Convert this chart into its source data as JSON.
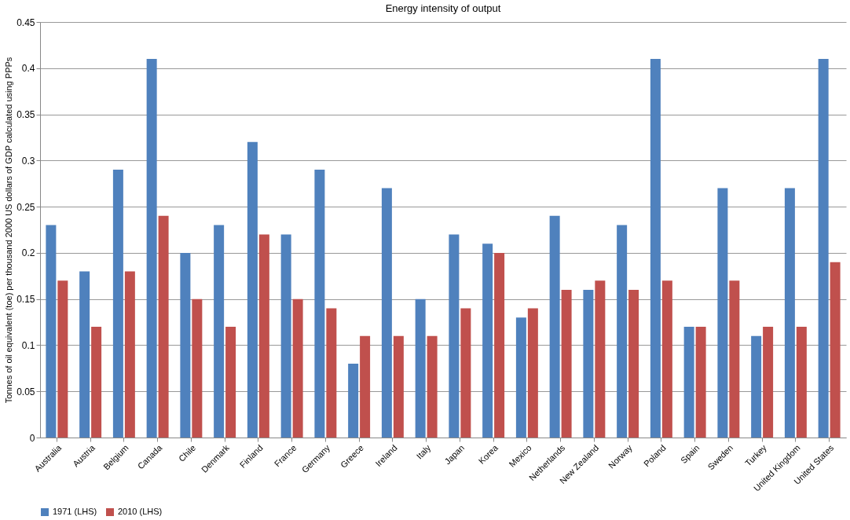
{
  "chart_data": {
    "type": "bar",
    "title": "Energy intensity of output",
    "ylabel": "Tonnes of oil equivalent (toe) per thousand 2000 US dollars of GDP calculated using PPPs",
    "categories": [
      "Australia",
      "Austria",
      "Belgium",
      "Canada",
      "Chile",
      "Denmark",
      "Finland",
      "France",
      "Germany",
      "Greece",
      "Ireland",
      "Italy",
      "Japan",
      "Korea",
      "Mexico",
      "Netherlands",
      "New Zealand",
      "Norway",
      "Poland",
      "Spain",
      "Sweden",
      "Turkey",
      "United Kingdom",
      "United States"
    ],
    "series": [
      {
        "name": "1971 (LHS)",
        "color": "#4f81bd",
        "values": [
          0.23,
          0.18,
          0.29,
          0.41,
          0.2,
          0.23,
          0.32,
          0.22,
          0.29,
          0.08,
          0.27,
          0.15,
          0.22,
          0.21,
          0.13,
          0.24,
          0.16,
          0.23,
          0.41,
          0.12,
          0.27,
          0.11,
          0.27,
          0.41
        ]
      },
      {
        "name": "2010 (LHS)",
        "color": "#c0504d",
        "values": [
          0.17,
          0.12,
          0.18,
          0.24,
          0.15,
          0.12,
          0.22,
          0.15,
          0.14,
          0.11,
          0.11,
          0.11,
          0.14,
          0.2,
          0.14,
          0.16,
          0.17,
          0.16,
          0.17,
          0.12,
          0.17,
          0.12,
          0.12,
          0.19
        ]
      }
    ],
    "ylim": [
      0,
      0.45
    ],
    "yticks": [
      0,
      0.05,
      0.1,
      0.15,
      0.2,
      0.25,
      0.3,
      0.35,
      0.4,
      0.45
    ],
    "grid": "y",
    "legend": "bottom"
  }
}
